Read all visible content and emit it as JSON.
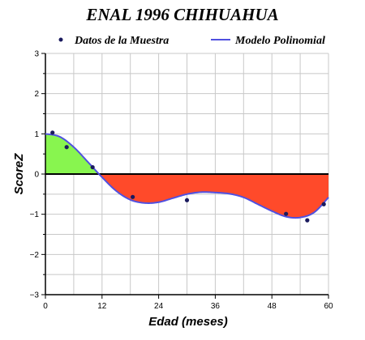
{
  "chart_data": {
    "type": "scatter",
    "title": "ENAL 1996 CHIHUAHUA",
    "xlabel": "Edad (meses)",
    "ylabel": "ScoreZ",
    "xlim": [
      0,
      60
    ],
    "ylim": [
      -3,
      3
    ],
    "xticks": [
      0,
      12,
      24,
      36,
      48,
      60
    ],
    "yticks": [
      -3,
      -2,
      -1,
      0,
      1,
      2,
      3
    ],
    "grid": true,
    "legend_position": "top",
    "series": [
      {
        "name": "Datos de la Muestra",
        "kind": "points",
        "color": "#1a1a5e",
        "x": [
          1.5,
          4.5,
          10,
          18.5,
          30,
          51,
          55.5,
          59
        ],
        "y": [
          1.03,
          0.67,
          0.17,
          -0.57,
          -0.65,
          -0.99,
          -1.15,
          -0.75
        ]
      },
      {
        "name": "Modelo Polinomial",
        "kind": "curve",
        "color": "#5050e0",
        "x": [
          0,
          3,
          6,
          9,
          12,
          15,
          18,
          21,
          24,
          27,
          30,
          33,
          36,
          39,
          42,
          45,
          48,
          51,
          54,
          57,
          60
        ],
        "y": [
          1.0,
          0.93,
          0.67,
          0.3,
          -0.08,
          -0.42,
          -0.64,
          -0.72,
          -0.7,
          -0.6,
          -0.5,
          -0.45,
          -0.46,
          -0.49,
          -0.58,
          -0.75,
          -0.92,
          -1.06,
          -1.08,
          -0.95,
          -0.58
        ]
      }
    ],
    "fill_colors": {
      "above_zero": "#88f54f",
      "below_zero": "#ff4a2a"
    },
    "zero_line_color": "#000000"
  }
}
